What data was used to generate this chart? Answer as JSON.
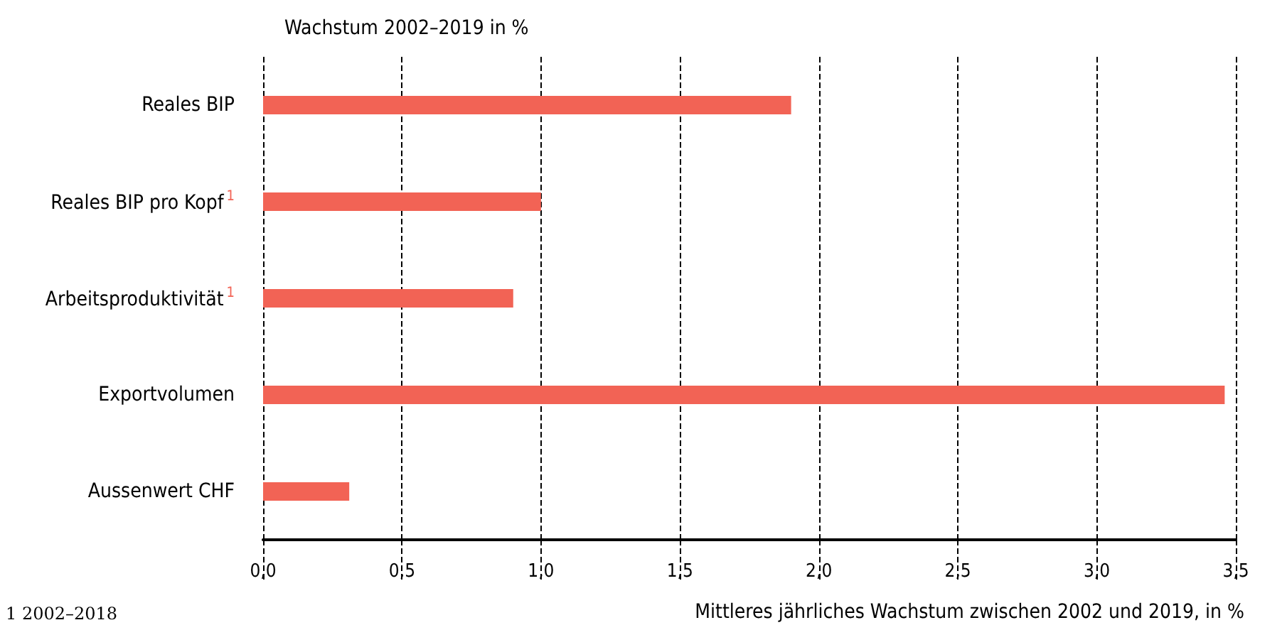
{
  "chart_data": {
    "type": "bar",
    "orientation": "horizontal",
    "title": "Wachstum 2002–2019 in %",
    "xlabel": "Mittleres jährliches Wachstum zwischen 2002 und 2019, in %",
    "categories": [
      "Reales BIP",
      "Reales BIP pro Kopf$^{1}$",
      "Arbeitsproduktivität$^{1}$",
      "Exportvolumen",
      "Aussenwert CHF"
    ],
    "values": [
      1.9,
      1.0,
      0.9,
      3.46,
      0.31
    ],
    "color": "#f26355",
    "xlim": [
      0,
      3.5
    ],
    "xticks": [
      {
        "value": 0,
        "label": "0,0"
      },
      {
        "value": 0.5,
        "label": "0,5"
      },
      {
        "value": 1,
        "label": "1,0"
      },
      {
        "value": 1.5,
        "label": "1,5"
      },
      {
        "value": 2,
        "label": "2,0"
      },
      {
        "value": 2.5,
        "label": "2,5"
      },
      {
        "value": 3,
        "label": "3,0"
      },
      {
        "value": 3.5,
        "label": "3,5"
      }
    ],
    "grid": "x",
    "annotations": [
      "1 2002–2018"
    ]
  }
}
